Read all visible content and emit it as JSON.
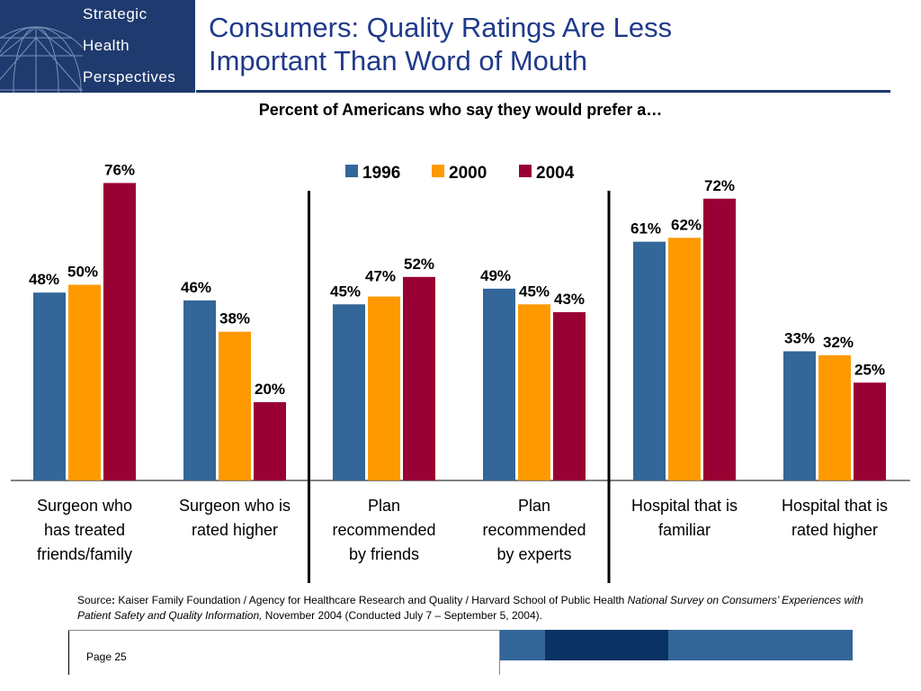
{
  "brand": {
    "line1": "Strategic",
    "line2": "Health",
    "line3": "Perspectives"
  },
  "title": {
    "line1": "Consumers: Quality Ratings Are Less",
    "line2": "Important Than Word of Mouth"
  },
  "subtitle": "Percent of Americans who say they would prefer a…",
  "colors": {
    "brand": "#1f3a6e",
    "title": "#1f3a8a",
    "s1996": "#336699",
    "s2000": "#ff9900",
    "s2004": "#990033"
  },
  "chart_data": {
    "type": "bar",
    "categories": [
      [
        "Surgeon who",
        "has treated",
        "friends/family"
      ],
      [
        "Surgeon who is",
        "rated higher"
      ],
      [
        "Plan",
        "recommended",
        "by friends"
      ],
      [
        "Plan",
        "recommended",
        "by experts"
      ],
      [
        "Hospital that is",
        "familiar"
      ],
      [
        "Hospital that is",
        "rated higher"
      ]
    ],
    "series": [
      {
        "name": "1996",
        "color": "#336699",
        "values": [
          48,
          46,
          45,
          49,
          61,
          33
        ]
      },
      {
        "name": "2000",
        "color": "#ff9900",
        "values": [
          50,
          38,
          47,
          45,
          62,
          32
        ]
      },
      {
        "name": "2004",
        "color": "#990033",
        "values": [
          76,
          20,
          52,
          43,
          72,
          25
        ]
      }
    ],
    "value_suffix": "%",
    "ylim": [
      0,
      100
    ],
    "legend": "top-center",
    "separators_after_category": [
      2,
      4
    ],
    "grid": false
  },
  "source": {
    "label": "Source",
    "text": "Kaiser Family Foundation / Agency for Healthcare Research and Quality / Harvard School of Public Health ",
    "italic": "National Survey on Consumers’ Experiences with Patient Safety and Quality Information,",
    "tail": " November 2004 (Conducted July 7 – September 5, 2004)."
  },
  "footer": {
    "page": "Page 25"
  }
}
